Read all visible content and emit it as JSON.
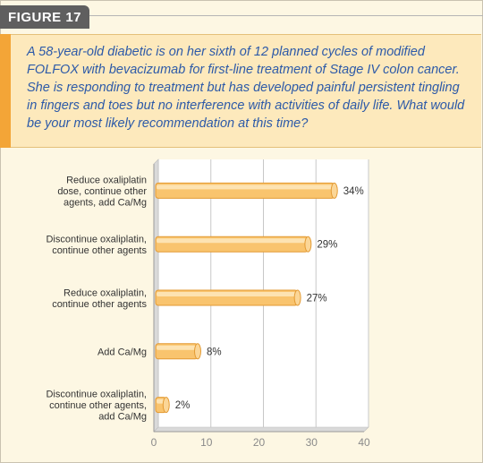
{
  "figure_label": "FIGURE 17",
  "question": "A 58-year-old diabetic is on her sixth of 12 planned cycles of modified FOLFOX with bevacizumab for first-line treatment of Stage IV colon cancer. She is responding to treatment but has developed painful persistent tingling in fingers and toes but no interference with activities of daily life. What would be your most likely recommendation at this time?",
  "colors": {
    "label_bg": "#5f5f5f",
    "question_bg": "#fde9bc",
    "question_accent": "#f3a537",
    "question_text": "#2d5aa8",
    "bar_fill": "#f9c46e",
    "bar_stroke": "#e39a33",
    "background": "#fdf7e3"
  },
  "chart_data": {
    "type": "bar",
    "orientation": "horizontal",
    "categories": [
      [
        "Reduce oxaliplatin",
        "dose, continue other",
        "agents, add Ca/Mg"
      ],
      [
        "Discontinue oxaliplatin,",
        "continue other agents"
      ],
      [
        "Reduce oxaliplatin,",
        "continue other agents"
      ],
      [
        "Add Ca/Mg"
      ],
      [
        "Discontinue oxaliplatin,",
        "continue other agents,",
        "add Ca/Mg"
      ]
    ],
    "values": [
      34,
      29,
      27,
      8,
      2
    ],
    "value_labels": [
      "34%",
      "29%",
      "27%",
      "8%",
      "2%"
    ],
    "xlim": [
      0,
      40
    ],
    "xticks": [
      "0",
      "10",
      "20",
      "30",
      "40"
    ],
    "grid": true
  }
}
